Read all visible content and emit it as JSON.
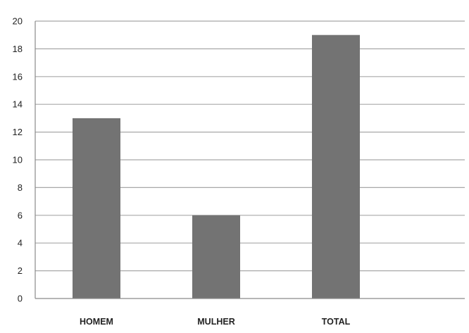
{
  "chart_data": {
    "type": "bar",
    "title": "",
    "xlabel": "",
    "ylabel": "",
    "categories": [
      "HOMEM",
      "MULHER",
      "TOTAL"
    ],
    "values": [
      13,
      6,
      19
    ],
    "ylim": [
      0,
      20
    ],
    "yticks": [
      0,
      2,
      4,
      6,
      8,
      10,
      12,
      14,
      16,
      18,
      20
    ],
    "grid": true,
    "legend": "none",
    "bar_color": "#737373",
    "grid_color": "#a8a8a8",
    "axis_color": "#8a8a8a"
  }
}
